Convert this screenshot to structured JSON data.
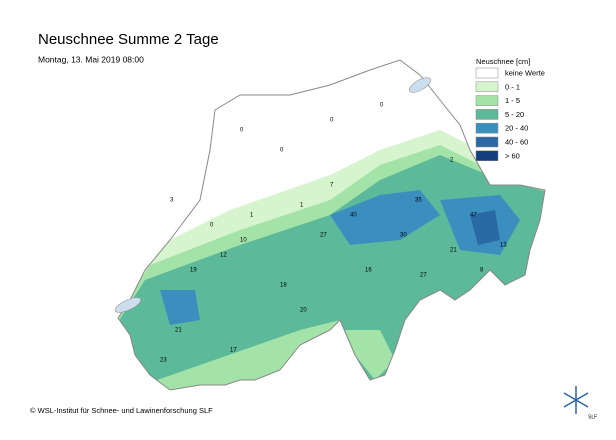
{
  "header": {
    "title": "Neuschnee Summe 2 Tage",
    "subtitle": "Montag, 13. Mai 2019 08:00"
  },
  "legend": {
    "title": "Neuschnee [cm]",
    "items": [
      {
        "label": "keine Werte",
        "color": "#ffffff"
      },
      {
        "label": "0 - 1",
        "color": "#d6f5cf"
      },
      {
        "label": "1 - 5",
        "color": "#a3e3a8"
      },
      {
        "label": "5 - 20",
        "color": "#5cb99a"
      },
      {
        "label": "20 - 40",
        "color": "#3b8fbf"
      },
      {
        "label": "40 - 60",
        "color": "#2a68a6"
      },
      {
        "label": "> 60",
        "color": "#143d7c"
      }
    ]
  },
  "stations": [
    "0",
    "0",
    "0",
    "0",
    "3",
    "0",
    "1",
    "10",
    "19",
    "12",
    "21",
    "17",
    "27",
    "40",
    "35",
    "18",
    "23",
    "20",
    "47",
    "21",
    "30",
    "16",
    "27",
    "8",
    "13",
    "7",
    "1",
    "2"
  ],
  "footer": {
    "copyright": "© WSL-Institut für Schnee- und Lawinenforschung SLF",
    "logo_text": "SLF"
  }
}
